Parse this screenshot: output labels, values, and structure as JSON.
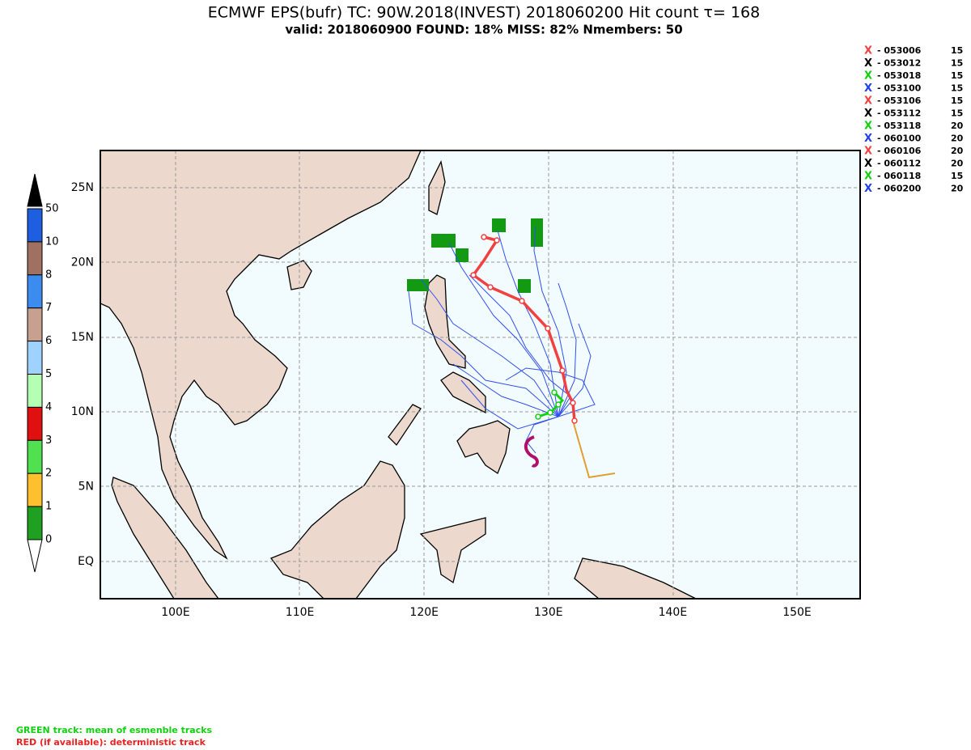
{
  "header": {
    "title": "ECMWF EPS(bufr) TC: 90W.2018(INVEST) 2018060200 Hit count  τ= 168",
    "subtitle": "valid: 2018060900   FOUND: 18%   MISS: 82%     Nmembers: 50"
  },
  "legend": [
    {
      "time": "- 053006",
      "count": 15,
      "color": "#f04040"
    },
    {
      "time": "- 053012",
      "count": 15,
      "color": "#000000"
    },
    {
      "time": "- 053018",
      "count": 15,
      "color": "#10d010"
    },
    {
      "time": "- 053100",
      "count": 15,
      "color": "#2040f0"
    },
    {
      "time": "- 053106",
      "count": 15,
      "color": "#f04040"
    },
    {
      "time": "- 053112",
      "count": 15,
      "color": "#000000"
    },
    {
      "time": "- 053118",
      "count": 20,
      "color": "#10d010"
    },
    {
      "time": "- 060100",
      "count": 20,
      "color": "#2040f0"
    },
    {
      "time": "- 060106",
      "count": 20,
      "color": "#f04040"
    },
    {
      "time": "- 060112",
      "count": 20,
      "color": "#000000"
    },
    {
      "time": "- 060118",
      "count": 15,
      "color": "#10d010"
    },
    {
      "time": "- 060200",
      "count": 20,
      "color": "#2040f0"
    }
  ],
  "colorbar": {
    "labels": [
      "50",
      "10",
      "8",
      "7",
      "6",
      "5",
      "4",
      "3",
      "2",
      "1",
      "0"
    ],
    "colors": [
      "#1e5ee0",
      "#a07060",
      "#3c8cf0",
      "#c8a090",
      "#a0d2ff",
      "#b4ffb4",
      "#e01010",
      "#50e050",
      "#ffc030",
      "#20a020"
    ]
  },
  "map": {
    "lat_labels": [
      "25N",
      "20N",
      "15N",
      "10N",
      "5N",
      "EQ"
    ],
    "lon_labels": [
      "100E",
      "110E",
      "120E",
      "130E",
      "140E",
      "150E"
    ]
  },
  "footer": {
    "line1": "GREEN track: mean of esmenble tracks",
    "line2": "RED (if available): deterministic track"
  }
}
